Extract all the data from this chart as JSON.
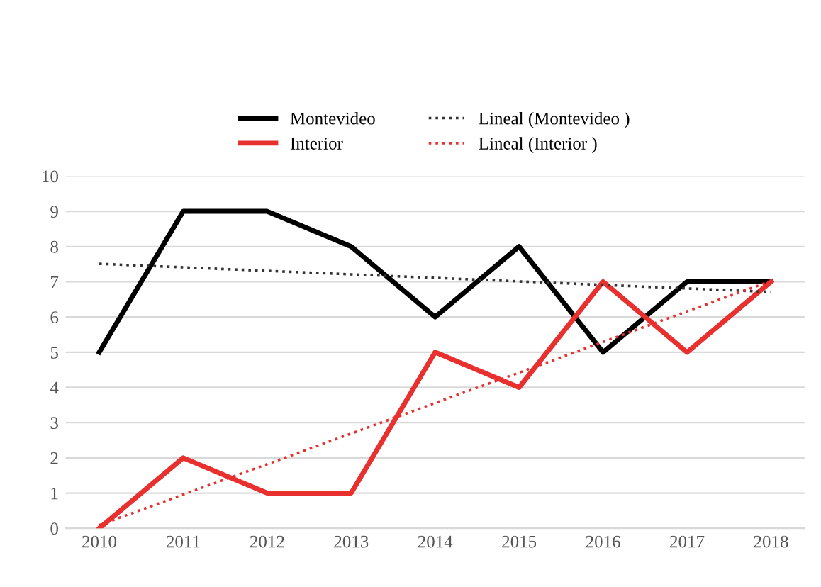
{
  "chart_data": {
    "type": "line",
    "x": [
      2010,
      2011,
      2012,
      2013,
      2014,
      2015,
      2016,
      2017,
      2018
    ],
    "series": [
      {
        "name": "Montevideo",
        "color": "#000000",
        "values": [
          5,
          9,
          9,
          8,
          6,
          8,
          5,
          7,
          7
        ]
      },
      {
        "name": "Interior",
        "color": "#e8302e",
        "values": [
          0,
          2,
          1,
          1,
          5,
          4,
          7,
          5,
          7
        ]
      },
      {
        "name": "Lineal (Montevideo )",
        "color": "#333333",
        "line_style": "dotted",
        "values": [
          7.51,
          7.41,
          7.31,
          7.21,
          7.11,
          7.01,
          6.91,
          6.81,
          6.71
        ]
      },
      {
        "name": "Lineal (Interior )",
        "color": "#e8302e",
        "line_style": "dotted",
        "values": [
          0.09,
          0.96,
          1.82,
          2.69,
          3.56,
          4.42,
          5.29,
          6.16,
          7.02
        ]
      }
    ],
    "xlim": [
      2009.6,
      2018.4
    ],
    "xticks": [
      2010,
      2011,
      2012,
      2013,
      2014,
      2015,
      2016,
      2017,
      2018
    ],
    "ylim": [
      0,
      10
    ],
    "yticks": [
      0,
      1,
      2,
      3,
      4,
      5,
      6,
      7,
      8,
      9,
      10
    ],
    "grid": "y",
    "legend": "top",
    "line_style": "solid",
    "marker": "none"
  }
}
